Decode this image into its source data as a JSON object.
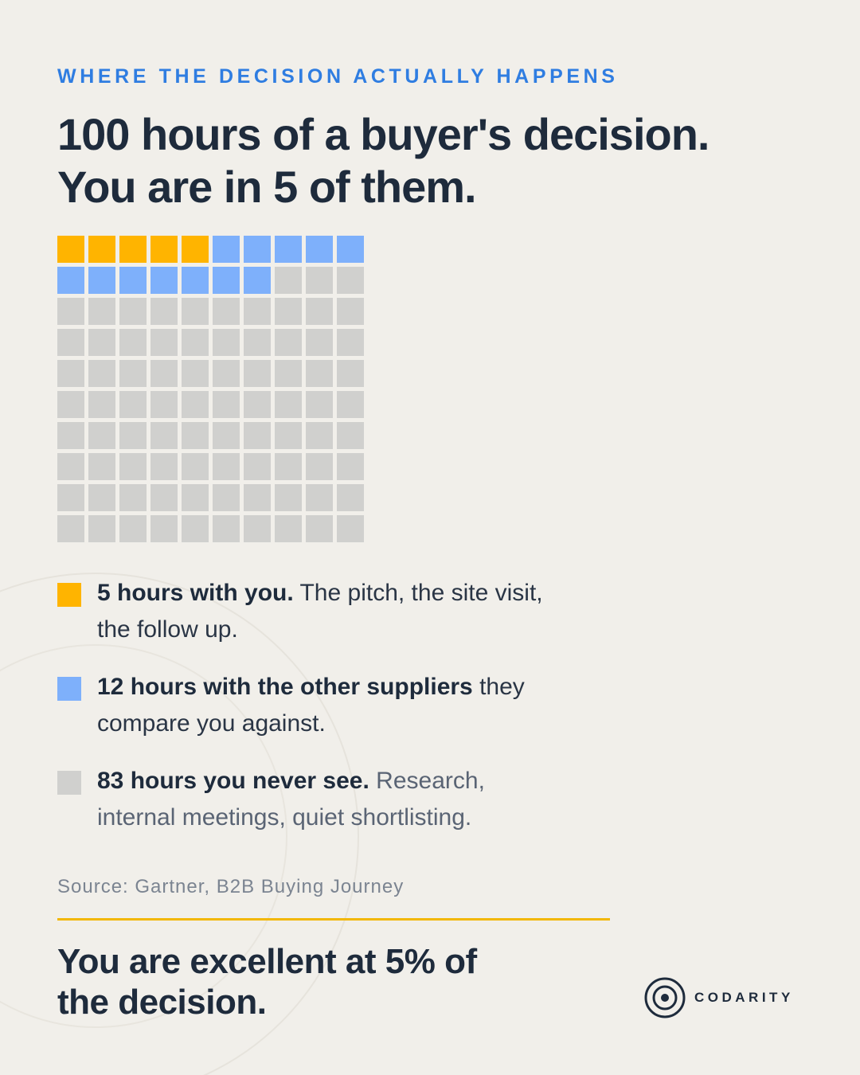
{
  "chart_data": {
    "type": "waffle",
    "kicker": "WHERE THE DECISION ACTUALLY HAPPENS",
    "title": "100 hours of a buyer's decision. You are in 5 of them.",
    "series": [
      {
        "name": "5 hours with you.",
        "description": "The pitch, the site visit, the follow up.",
        "color": "#ffb400",
        "value": 5
      },
      {
        "name": "12 hours with the other suppliers",
        "description": "they compare you against.",
        "color": "#7eb0fb",
        "value": 12
      },
      {
        "name": "83 hours you never see.",
        "description": "Research, internal meetings, quiet shortlisting.",
        "color": "#d0d0ce",
        "value": 83
      }
    ],
    "source": "Source: Gartner, B2B Buying Journey",
    "conclusion": "You are excellent at 5% of the decision."
  },
  "brand": "CODARITY"
}
